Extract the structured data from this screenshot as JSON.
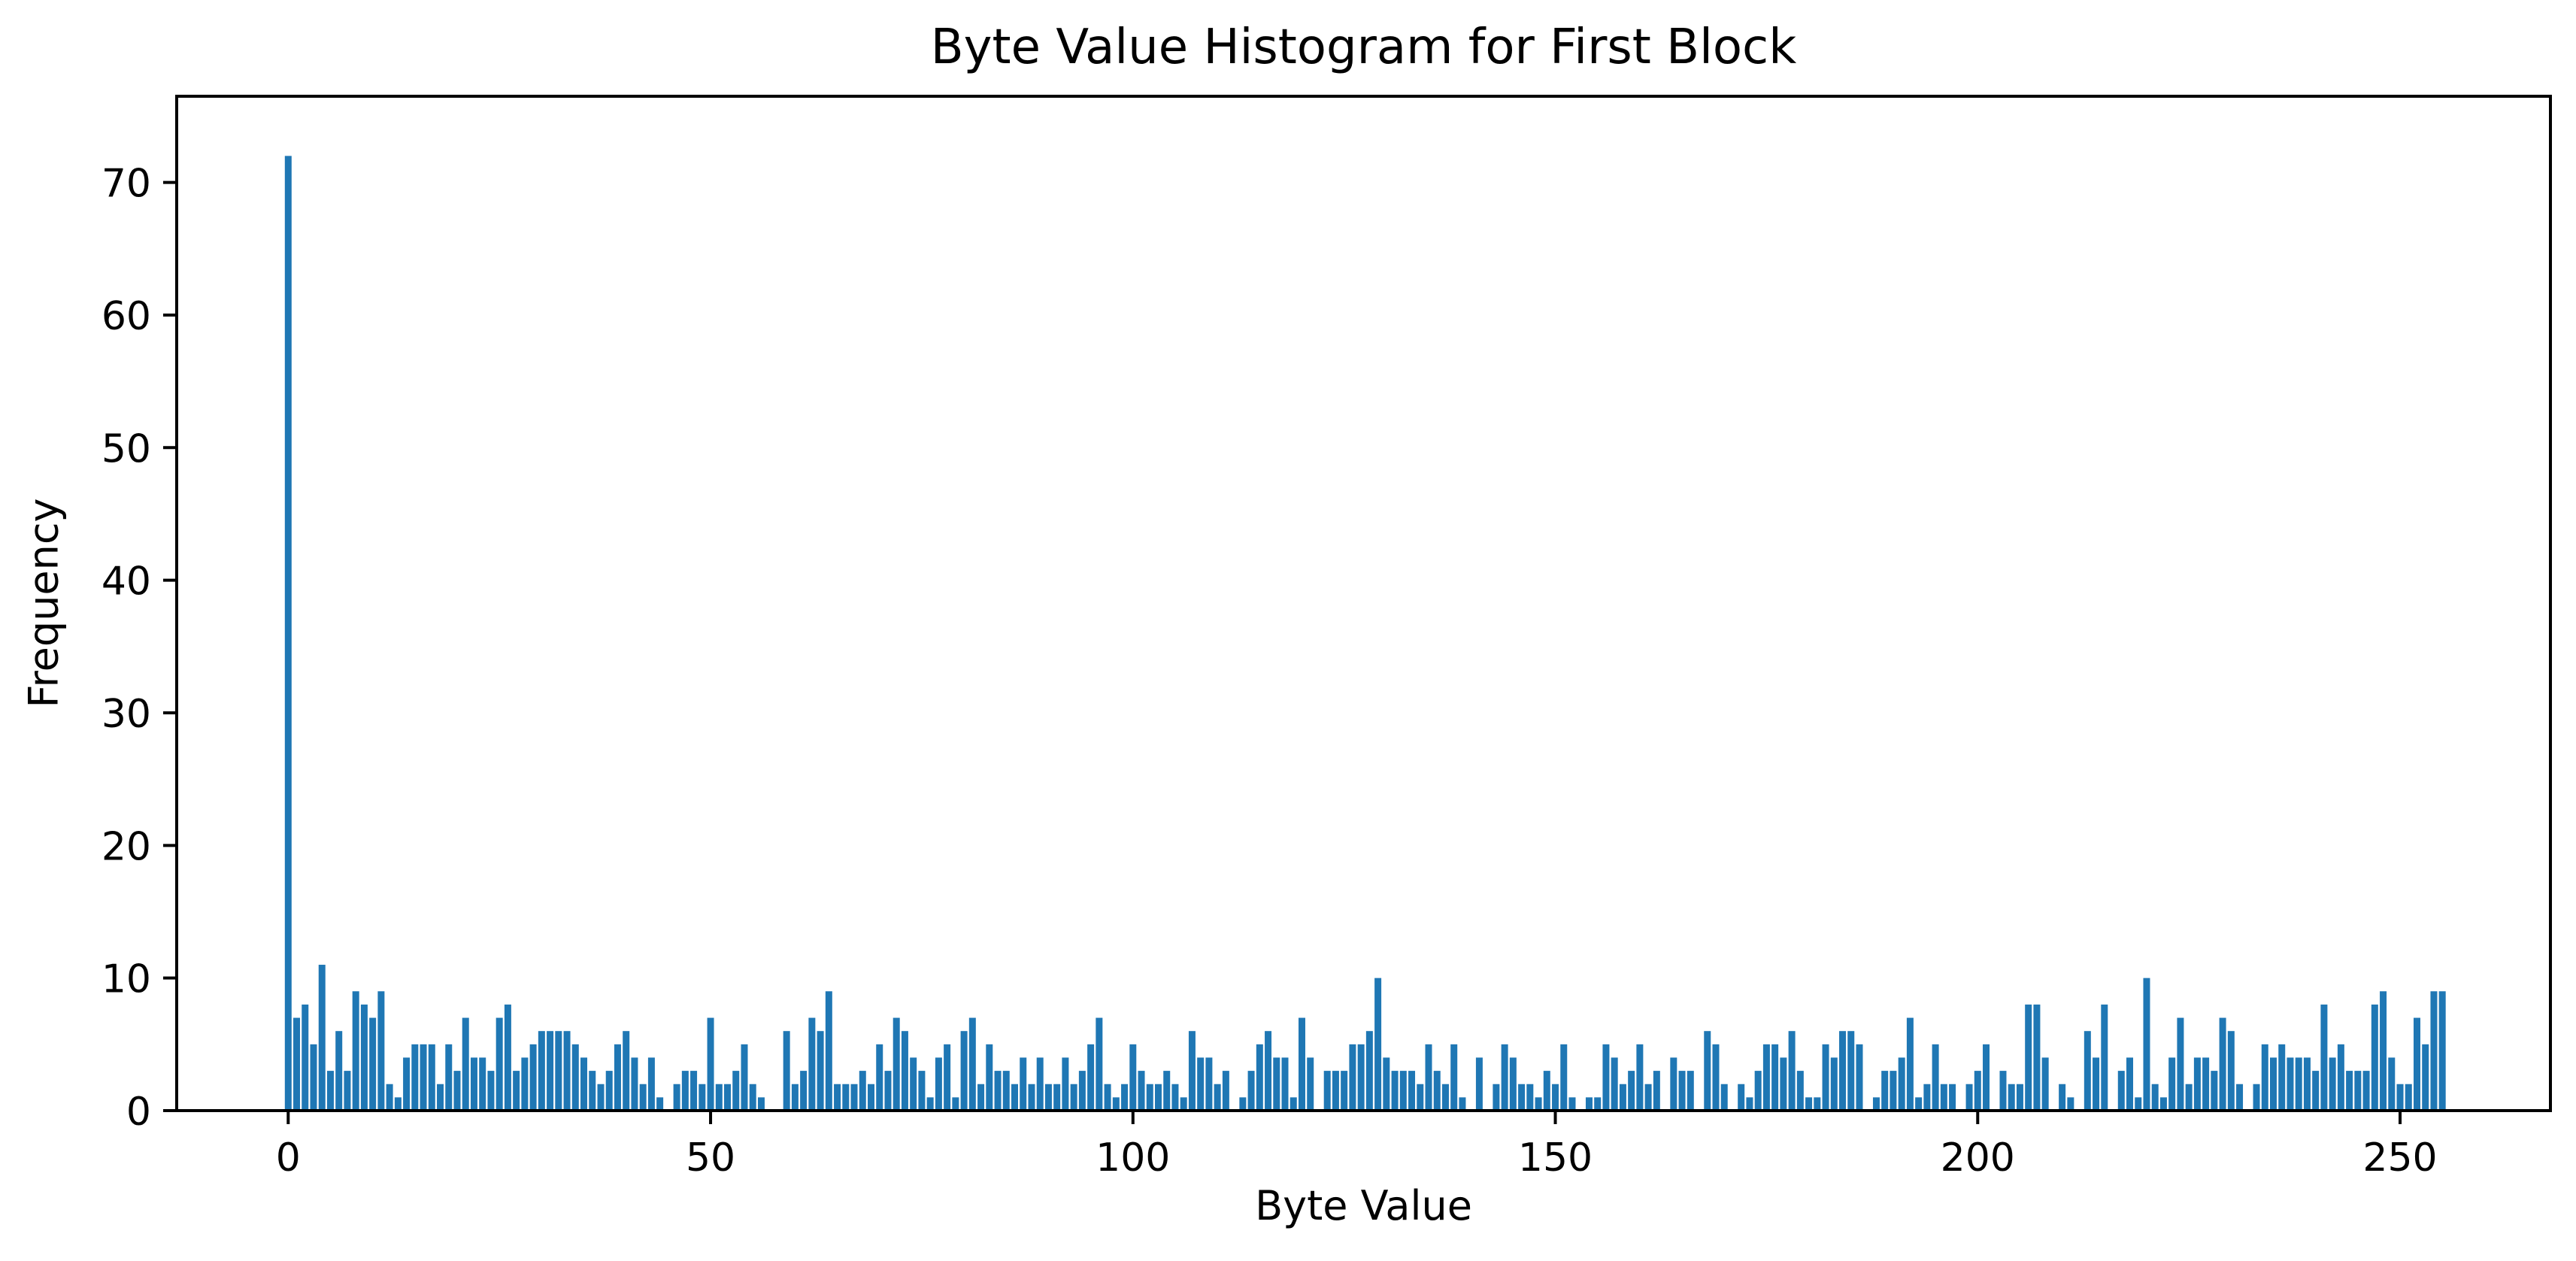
{
  "figure": {
    "background": "#ffffff"
  },
  "chart_data": {
    "type": "bar",
    "title": "Byte Value Histogram for First Block",
    "xlabel": "Byte Value",
    "ylabel": "Frequency",
    "x_of_first_bar": 0,
    "x_step": 1,
    "values": [
      72,
      7,
      8,
      5,
      11,
      3,
      6,
      3,
      9,
      8,
      7,
      9,
      2,
      1,
      4,
      5,
      5,
      5,
      2,
      5,
      3,
      7,
      4,
      4,
      3,
      7,
      8,
      3,
      4,
      5,
      6,
      6,
      6,
      6,
      5,
      4,
      3,
      2,
      3,
      5,
      6,
      4,
      2,
      4,
      1,
      0,
      2,
      3,
      3,
      2,
      7,
      2,
      2,
      3,
      5,
      2,
      1,
      0,
      0,
      6,
      2,
      3,
      7,
      6,
      9,
      2,
      2,
      2,
      3,
      2,
      5,
      3,
      7,
      6,
      4,
      3,
      1,
      4,
      5,
      1,
      6,
      7,
      2,
      5,
      3,
      3,
      2,
      4,
      2,
      4,
      2,
      2,
      4,
      2,
      3,
      5,
      7,
      2,
      1,
      2,
      5,
      3,
      2,
      2,
      3,
      2,
      1,
      6,
      4,
      4,
      2,
      3,
      0,
      1,
      3,
      5,
      6,
      4,
      4,
      1,
      7,
      4,
      0,
      3,
      3,
      3,
      5,
      5,
      6,
      10,
      4,
      3,
      3,
      3,
      2,
      5,
      3,
      2,
      5,
      1,
      0,
      4,
      0,
      2,
      5,
      4,
      2,
      2,
      1,
      3,
      2,
      5,
      1,
      0,
      1,
      1,
      5,
      4,
      2,
      3,
      5,
      2,
      3,
      0,
      4,
      3,
      3,
      0,
      6,
      5,
      2,
      0,
      2,
      1,
      3,
      5,
      5,
      4,
      6,
      3,
      1,
      1,
      5,
      4,
      6,
      6,
      5,
      0,
      1,
      3,
      3,
      4,
      7,
      1,
      2,
      5,
      2,
      2,
      0,
      2,
      3,
      5,
      0,
      3,
      2,
      2,
      8,
      8,
      4,
      0,
      2,
      1,
      0,
      6,
      4,
      8,
      0,
      3,
      4,
      1,
      10,
      2,
      1,
      4,
      7,
      2,
      4,
      4,
      3,
      7,
      6,
      2,
      0,
      2,
      5,
      4,
      5,
      4,
      4,
      4,
      3,
      8,
      4,
      5,
      3,
      3,
      3,
      8,
      9,
      4,
      2,
      2,
      7,
      5,
      9,
      9
    ],
    "xticks": [
      0,
      50,
      100,
      150,
      200,
      250
    ],
    "yticks": [
      0,
      10,
      20,
      30,
      40,
      50,
      60,
      70
    ],
    "xlim": [
      -13.2,
      267.8
    ],
    "ylim": [
      0,
      76.5
    ],
    "bar_width": 0.8,
    "bar_color": "#1f77b4",
    "axis_color": "#000000",
    "tick_label_color": "#000000",
    "grid": false,
    "legend_position": "none"
  }
}
